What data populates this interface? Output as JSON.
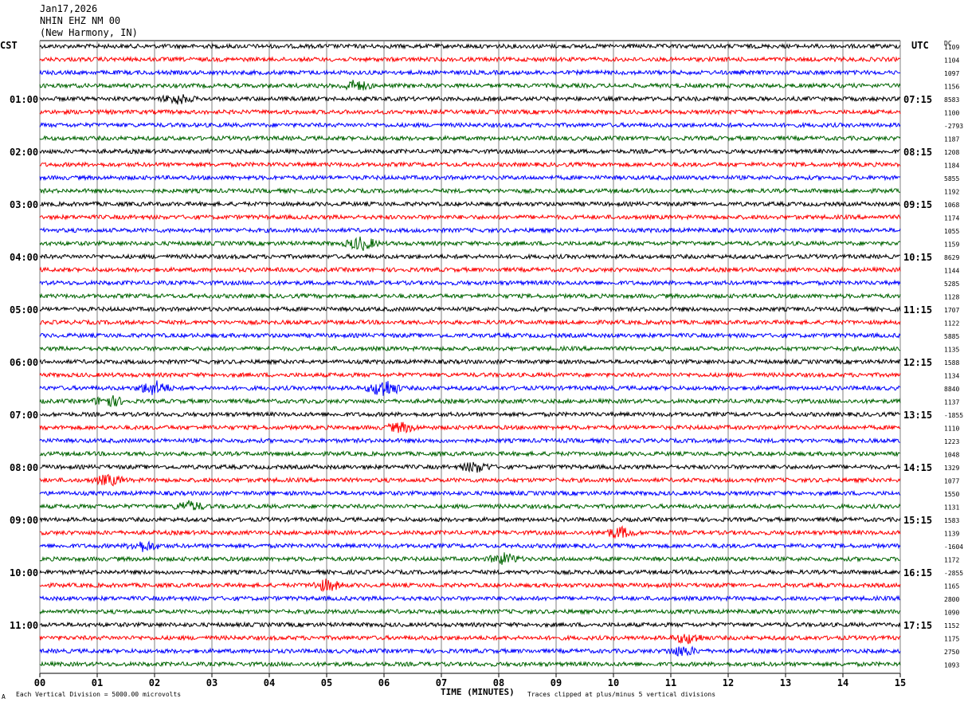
{
  "header": {
    "date": "Jan17,2026",
    "station": "NHIN EHZ NM 00",
    "location": "(New Harmony, IN)"
  },
  "left_tz": "CST",
  "right_tz": "UTC",
  "dc_label": "DC",
  "footer": {
    "mark": "A",
    "scale_note": "Each Vertical Division = 5000.00 microvolts",
    "xlabel": "TIME (MINUTES)",
    "clip_note": "Traces clipped at plus/minus 5 vertical divisions"
  },
  "colors": {
    "black": "#000000",
    "red": "#ff0000",
    "blue": "#0000ff",
    "green": "#006400",
    "grid": "#808080"
  },
  "chart_data": {
    "type": "line",
    "title": "",
    "xlabel": "TIME (MINUTES)",
    "xlim": [
      0,
      15
    ],
    "x_ticks": [
      "00",
      "01",
      "02",
      "03",
      "04",
      "05",
      "06",
      "07",
      "08",
      "09",
      "10",
      "11",
      "12",
      "13",
      "14",
      "15"
    ],
    "left_time_labels": [
      "01:00",
      "02:00",
      "03:00",
      "04:00",
      "05:00",
      "06:00",
      "07:00",
      "08:00",
      "09:00",
      "10:00",
      "11:00"
    ],
    "right_time_labels": [
      "07:15",
      "08:15",
      "09:15",
      "10:15",
      "11:15",
      "12:15",
      "13:15",
      "14:15",
      "15:15",
      "16:15",
      "17:15"
    ],
    "trace_colors": [
      "black",
      "red",
      "blue",
      "green"
    ],
    "dc_values": [
      "1109",
      "1104",
      "1097",
      "1156",
      "8583",
      "1100",
      "-2793",
      "1187",
      "1208",
      "1184",
      "5855",
      "1192",
      "1068",
      "1174",
      "1055",
      "1159",
      "8629",
      "1144",
      "5285",
      "1128",
      "1707",
      "1122",
      "5885",
      "1135",
      "1588",
      "1134",
      "8840",
      "1137",
      "-1855",
      "1110",
      "1223",
      "1048",
      "1329",
      "1077",
      "1550",
      "1131",
      "1583",
      "1139",
      "-1604",
      "1172",
      "-2855",
      "1165",
      "2800",
      "1090",
      "1152",
      "1175",
      "2750",
      "1093"
    ],
    "events": [
      {
        "row": 3,
        "minute": 5.5,
        "amp": 1.4
      },
      {
        "row": 4,
        "minute": 2.4,
        "amp": 1.3
      },
      {
        "row": 15,
        "minute": 5.6,
        "amp": 1.8
      },
      {
        "row": 26,
        "minute": 2.0,
        "amp": 2.0
      },
      {
        "row": 26,
        "minute": 6.0,
        "amp": 2.6
      },
      {
        "row": 27,
        "minute": 1.2,
        "amp": 1.5
      },
      {
        "row": 29,
        "minute": 6.3,
        "amp": 1.3
      },
      {
        "row": 32,
        "minute": 7.6,
        "amp": 1.4
      },
      {
        "row": 33,
        "minute": 1.2,
        "amp": 1.4
      },
      {
        "row": 35,
        "minute": 2.6,
        "amp": 1.3
      },
      {
        "row": 37,
        "minute": 10.1,
        "amp": 1.5
      },
      {
        "row": 38,
        "minute": 1.8,
        "amp": 1.4
      },
      {
        "row": 39,
        "minute": 8.1,
        "amp": 1.5
      },
      {
        "row": 41,
        "minute": 5.0,
        "amp": 1.5
      },
      {
        "row": 45,
        "minute": 11.3,
        "amp": 1.4
      },
      {
        "row": 46,
        "minute": 11.2,
        "amp": 1.3
      }
    ]
  }
}
